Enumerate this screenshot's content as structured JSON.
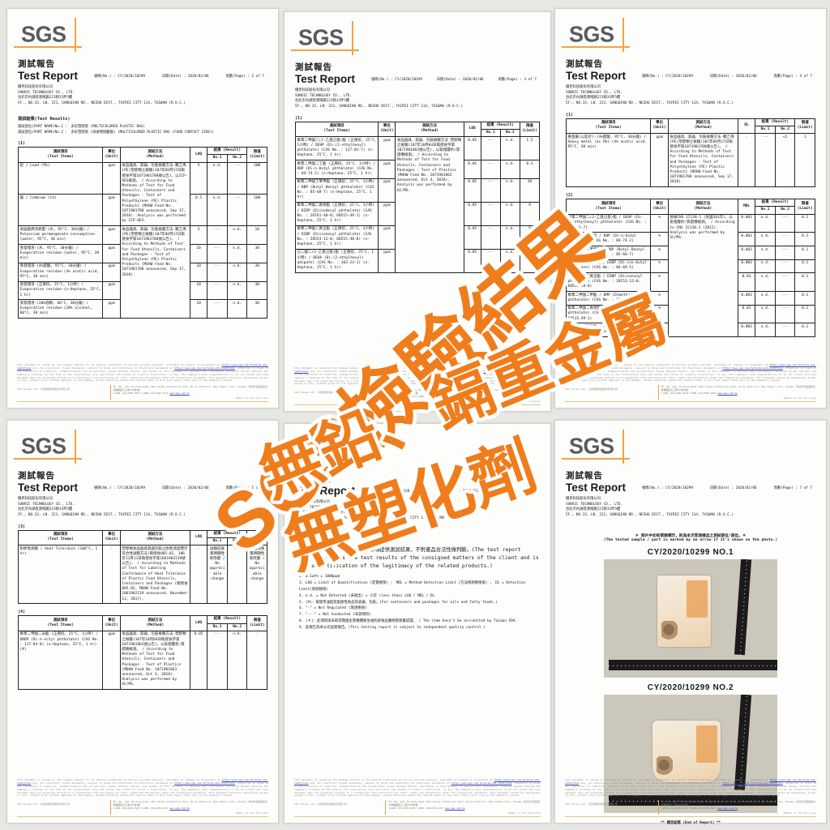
{
  "watermark": {
    "line1": "SGS檢驗結果",
    "line2": "無鉛、鎘重金屬",
    "line3": "無塑化劑",
    "color": "#ef7d1c",
    "outline": "#ffffff"
  },
  "common": {
    "logo_text": "SGS",
    "report_title_zh": "測試報告",
    "report_title_en": "Test Report",
    "no_label": "號碼(No.) :",
    "report_no": "CY/2020/10299",
    "date_label": "日期(Date) :",
    "date": "2020/02/06",
    "page_label": "頁數(Page) :",
    "company_zh": "穩見科技股份有限公司",
    "company_en": "SUNVIC TECHNOLOGY CO., LTD.",
    "address_zh": "台北市內湖區港墘路221巷33弄5樓",
    "address_en": "5F., NO.33, LN. 221, GANGQIAN RD., NEIHU DIST., TAIPEI CITY 114, TAIWAN (R.O.C.)",
    "columns": {
      "item_zh": "測試項目",
      "item_en": "(Test Items)",
      "unit_zh": "單位",
      "unit_en": "(Unit)",
      "method_zh": "測試方法",
      "method_en": "(Method)",
      "result_zh": "結果",
      "result_en": "(Result)",
      "no1": "No.1",
      "no2": "No.2",
      "limit_zh": "限值",
      "limit_en": "(Limit)"
    }
  },
  "pages": [
    {
      "page_no": "2 of 7",
      "results_title": "測試結果(Test Results)",
      "parts": [
        "測試部位(PART NAME)No.1 ： 多彩塑膠袋 (MULTICOLORED PLASTIC BAG)",
        "測試部位(PART NAME)No.2 ： 多彩塑膠袋 (與食物接觸面) (MULTICOLORED PLASTIC BAG (FOOD CONTACT SIDE))"
      ],
      "tables": [
        {
          "label": "(1)",
          "mdl_header": "LOQ",
          "groups": [
            {
              "method": "食品器具、容器、包裝檢驗方法-聚乙烯(PE)塑膠類之檢驗(107年09月17日衛授食字第1071901788號公告)，以ICP-OES檢測。 / According to Methods of Test for Food Utensils, Containers and Packages - Test of Polyethylene (PE) Plastic Products (MOHW Food No. 1071901788 announced, Sep 17, 2018). Analysis was performed by ICP-OES.",
              "rows": [
                {
                  "item": "鉛 / Lead (Pb)",
                  "unit": "ppm",
                  "mdl": "5",
                  "r1": "n.d.",
                  "r2": "---",
                  "limit": "100"
                },
                {
                  "item": "鎘 / Cadmium (Cd)",
                  "unit": "ppm",
                  "mdl": "0.5",
                  "r1": "n.d.",
                  "r2": "---",
                  "limit": "100"
                }
              ]
            },
            {
              "method": "食品器具、容器、包裝檢驗方法-聚乙烯(PE)塑膠類之檢驗(107年09月17日衛授食字第1071901788號公告)。 / According to Methods of Test for Food Utensils, Containers and Packages - Test of Polyethylene (PE) Plastic Products (MOHW Food No. 1071901788 announced, Sep 17, 2018).",
              "rows": [
                {
                  "item": "高錳酸鉀消耗量-(水, 95°C, 30分鐘) / Potassium permanganate consumption-(water, 95°C, 30 min)",
                  "unit": "ppm",
                  "mdl": "3",
                  "r1": "---",
                  "r2": "n.d.",
                  "limit": "10"
                },
                {
                  "item": "蒸發殘渣-(水, 95°C, 30分鐘) / Evaporation residue-(water, 95°C, 30 min)",
                  "unit": "ppm",
                  "mdl": "10",
                  "r1": "---",
                  "r2": "n.d.",
                  "limit": "30"
                },
                {
                  "item": "蒸發殘渣-(4%醋酸, 95°C, 30分鐘) / Evaporation residue-(4% acetic acid, 95°C, 30 min)",
                  "unit": "ppm",
                  "mdl": "10",
                  "r1": "---",
                  "r2": "n.d.",
                  "limit": "30"
                },
                {
                  "item": "蒸發殘渣-(正庚烷, 25°C, 1小時) / Evaporation residue-(n-Heptane, 25°C, 1 hr)",
                  "unit": "ppm",
                  "mdl": "10",
                  "r1": "---",
                  "r2": "n.d.",
                  "limit": "30"
                },
                {
                  "item": "蒸發殘渣-(20%酒精, 60°C, 30分鐘) / Evaporation residue-(20% alcohol, 60°C, 30 min)",
                  "unit": "ppm",
                  "mdl": "10",
                  "r1": "---",
                  "r2": "n.d.",
                  "limit": "30"
                }
              ]
            }
          ]
        }
      ]
    },
    {
      "page_no": "3 of 7",
      "tables": [
        {
          "label": "(1)",
          "mdl_header": "LOQ",
          "groups": [
            {
              "method": "食品器具、容器、包裝檢驗方法-塑膠類之檢驗(107年10月04日衛授食字第1071901863號公告)，以氣相層析/質譜儀檢測。 / According to Methods of Test for Food Utensils, Containers and Packages - Test of Plastics (MOHW Food No. 1071901863 announced, Oct 4, 2018). Analysis was performed by GC/MS.",
              "rows": [
                {
                  "item": "鄰苯二甲酸二(2-乙基己基)酯 (正庚烷, 25°C, 1小時) / DEHP (Di-(2-ethylhexyl) phthalate) (CAS No. : 117-81-7) (n-Heptane, 25°C, 1 hr)",
                  "unit": "ppm",
                  "mdl": "0.05",
                  "r1": "---",
                  "r2": "n.d.",
                  "limit": "1.5"
                },
                {
                  "item": "鄰苯二甲酸二丁酯 (正庚烷, 25°C, 1小時) / DBP (Di-n-butyl phthalate) (CAS No. : 84-74-2) (n-Heptane, 25°C, 1 hr)",
                  "unit": "ppm",
                  "mdl": "0.05",
                  "r1": "---",
                  "r2": "n.d.",
                  "limit": "0.3"
                },
                {
                  "item": "鄰苯二甲酸丁苯甲酯 (正庚烷, 25°C, 1小時) / BBP (Butyl Benzyl phthalate) (CAS No. : 85-68-7) (n-Heptane, 25°C, 1 hr)",
                  "unit": "ppm",
                  "mdl": "0.05",
                  "r1": "---",
                  "r2": "n.d.",
                  "limit": "30"
                },
                {
                  "item": "鄰苯二甲酸二異癸酯 (正庚烷, 25°C, 1小時) / DIDP (Diisodecyl phthalate) (CAS No. : 26761-40-0; 68515-49-1) (n-Heptane, 25°C, 1 hr)",
                  "unit": "ppm",
                  "mdl": "0.05",
                  "r1": "---",
                  "r2": "n.d.",
                  "limit": "9"
                },
                {
                  "item": "鄰苯二甲酸二異壬酯 (正庚烷, 25°C, 1小時) / DINP (Diisononyl phthalate) (CAS No. : 28553-12-0; 68515-48-0) (n-Heptane, 25°C, 1 hr)",
                  "unit": "ppm",
                  "mdl": "0.05",
                  "r1": "---",
                  "r2": "n.d.",
                  "limit": "9"
                },
                {
                  "item": "己二酸二(2-乙基己基)酯 (正庚烷, 25°C, 1小時) / DEHA (Di-(2-ethylhexyl) adipate) (CAS No. : 103-23-1) (n-Heptane, 25°C, 1 hr)",
                  "unit": "ppm",
                  "mdl": "0.05",
                  "r1": "---",
                  "r2": "n.d.",
                  "limit": "18"
                }
              ]
            }
          ]
        }
      ]
    },
    {
      "page_no": "4 of 7",
      "tables": [
        {
          "label": "(1)",
          "mdl_header": "DL",
          "groups": [
            {
              "method": "食品器具、容器、包裝檢驗方法-聚乙烯(PE)塑膠類之檢驗(107年09月17日衛授食字第1071901788號公告)。 / According to Methods of Test for Food Utensils, Containers and Packages - Test of Polyethylene (PE) Plastic Products (MOHW Food No. 1071901788 announced, Sep 17, 2018).",
              "rows": [
                {
                  "item": "重金屬(以鉛計)-(4%醋酸, 95°C, 30分鐘) / Heavy metal (as Pb)-(4% acetic acid, 95°C, 30 min)",
                  "unit": "ppm",
                  "mdl": "-",
                  "r1": "---",
                  "r2": "<1",
                  "limit": "1"
                }
              ]
            }
          ]
        },
        {
          "label": "(2)",
          "mdl_header": "MDL",
          "groups": [
            {
              "method": "依據CNS 15138-1 (民國101年)，以氣相層析/質譜儀檢測。 / According to CNS 15138-1 (2012). Analysis was performed by GC/MS.",
              "rows": [
                {
                  "item": "鄰苯二甲酸二(2-乙基己基)酯 / DEHP (Di-(2-ethylhexyl) phthalate) (CAS No. : 117-81-7)",
                  "unit": "%",
                  "mdl": "0.003",
                  "r1": "n.d.",
                  "r2": "---",
                  "limit": "0.1"
                },
                {
                  "item": "鄰苯二甲酸二丁酯 / DBP (Di-n-butyl phthalate) (CAS No. : 84-74-2)",
                  "unit": "%",
                  "mdl": "0.003",
                  "r1": "n.d.",
                  "r2": "---",
                  "limit": "0.1"
                },
                {
                  "item": "鄰苯二甲酸丁苯甲酯 / BBP (Butyl Benzyl phthalate) (CAS No. : 85-68-7)",
                  "unit": "%",
                  "mdl": "0.003",
                  "r1": "n.d.",
                  "r2": "---",
                  "limit": "0.1"
                },
                {
                  "item": "鄰苯二甲酸二異丁酯 / DIBP (Di-iso-butyl phthalate) (CAS No. : 84-69-5)",
                  "unit": "%",
                  "mdl": "0.003",
                  "r1": "n.d.",
                  "r2": "---",
                  "limit": "0.1"
                },
                {
                  "item": "鄰苯二甲酸二異壬酯 / DINP (Diisononyl phthalate) (CAS No. : 28553-12-0; 68515-48-0)",
                  "unit": "%",
                  "mdl": "0.01",
                  "r1": "n.d.",
                  "r2": "---",
                  "limit": "0.1"
                },
                {
                  "item": "鄰苯二甲酸二甲酯 / DMP (Dimethyl phthalate) (CAS No. : 131-11-3)",
                  "unit": "%",
                  "mdl": "0.003",
                  "r1": "n.d.",
                  "r2": "---",
                  "limit": "0.1"
                },
                {
                  "item": "鄰苯二甲酸二異癸酯 / DIDP (Diisodecyl phthalate) (CAS No. : 26761-40-0; 68515-49-1)",
                  "unit": "%",
                  "mdl": "0.01",
                  "r1": "n.d.",
                  "r2": "---",
                  "limit": "0.1"
                },
                {
                  "item": "鄰苯二甲酸二乙酯 / DEP (Diethyl phthalate) (CAS No. : 84-66-2)",
                  "unit": "%",
                  "mdl": "0.003",
                  "r1": "n.d.",
                  "r2": "---",
                  "limit": "0.1"
                }
              ]
            }
          ]
        }
      ]
    },
    {
      "page_no": "5 of 7",
      "tables": [
        {
          "label": "(3)",
          "mdl_header": "LOQ",
          "groups": [
            {
              "method": "塑膠類食品器具容器包裝之耐熱溫度標示符合性試驗方法(衛授食005.02, 106年11月13日衛授食字第1061902219號公告)。 / According to Methods of Test for Labeling Conformance of Heat Tolerance of Plastic Food Utensils, Containers and Packages (衛授食005.02, MOHW Food No. 1061902219 announced, November 13, 2017).",
              "rows": [
                {
                  "item": "耐熱性測驗 / Heat Tolerance (100°C, 1 hr)",
                  "unit": "-",
                  "mdl": "-",
                  "r1": "試驗前後無明顯性狀改變 / No appreciable change",
                  "r2": "---",
                  "limit": "試驗前後無明顯性狀改變 / No appreciable change"
                }
              ]
            }
          ]
        },
        {
          "label": "(4)",
          "mdl_header": "LOQ",
          "groups": [
            {
              "method": "食品器具、容器、包裝檢驗方法-塑膠類之檢驗(107年10月04日衛授食字第1071901863號公告)，以氣相層析/質譜儀檢測。 / According to Methods of Test for Food Utensils, Containers and Packages - Test of Plastics (MOHW Food No. 1071901863 announced, Oct 4, 2018). Analysis was performed by GC/MS.",
              "rows": [
                {
                  "item": "鄰苯二甲酸二辛酯 (正庚烷, 25°C, 1小時) / DNOP (Di-n-octyl phthalate) (CAS No. : 117-84-0) (n-Heptane, 25°C, 1 hr) (#)",
                  "unit": "ppm",
                  "mdl": "0.05",
                  "r1": "---",
                  "r2": "n.d.",
                  "limit": "-"
                }
              ]
            }
          ]
        }
      ]
    },
    {
      "page_no": "6 of 7",
      "notes_title": "備註(Note)：",
      "note_first": "1. 測試報告僅就委託者之委託事項提供測試結果，不對產品合法性做判斷。(The test report merely reflects the test results of the consigned matters of the client and is not a certification of the legitimacy of the related products.)",
      "notes": [
        "2. 0.1wt% = 1000ppm",
        "3. LOQ = Limit of Quantification (定量極限) ； MDL = Method Detection Limit (方法偵測極限值) ； DL = Detection Limit(偵測極限)",
        "4. n.d. = Not Detected (未檢出) = 小於 (less than) LOQ / MDL / DL",
        "5. (#)：祇使用油脂及脂肪性食品為容器、包裝。(For containers and packages for oils and fatty foods.)",
        "6. \"-\" = Not Regulated (無規格值)",
        "7. \"---\" = Not Conducted (未測項目)",
        "8. (＊)：此項目尚未取得我國主管機關衛生福利部食品藥物管理署認證。 / The item hasn't be accredited by Taiwan FDA.",
        "9. 此報告為本公司品管報告。(This testing report is subject to independent quality control.)"
      ]
    },
    {
      "page_no": "7 of 7",
      "photo_caption_zh": "＊ 照片中如有箭頭標示，則為本次受測樣品之測試部位/部位。＊",
      "photo_caption_en": "(The tested sample / part is marked by an arrow if it's shown on the photo.)",
      "photos": [
        {
          "label": "CY/2020/10299  NO.1"
        },
        {
          "label": "CY/2020/10299  NO.2"
        }
      ],
      "end_text": "** 報告結尾 (End of Report) **"
    }
  ],
  "footer": {
    "d1": "This document is issued by the Company subject to its General Conditions of Service printed overleaf, available on request or accessible at ",
    "link1": "https://www.sgs.com.tw/terms-and-conditions",
    "d2": " and, for electronic format documents, subject to Terms and Conditions for Electronic Documents at ",
    "link2": "https://www.sgs.com.tw/terms-and-conditions",
    "d3": ". Attention is drawn to the limitation of liability, indemnification and jurisdiction issues defined therein. Any holder of this document is advised that information contained hereon reflects the Company's findings at the time of its intervention only and within the limits of client's instruction, if any. The Company's sole responsibility is to its Client and this document does not exonerate parties to a transaction from exercising all their rights and obligations under the transaction documents. This document cannot be reproduced, except in full, without prior written approval of the Company. Unless otherwise stated the results shown in this test report refer only to the sample(s) tested.",
    "company": "SGS Taiwan Ltd. 台灣檢驗科技股份有限公司",
    "address": "4F, No. 125, Wu Kung Road, New Taipei Industrial Park, Wu Ku District, New Taipei City, Taiwan /新北市五股區新北產業園區五工路125號4樓",
    "phone": "t+886 (02)2299-3939   f+886 (02)2299-3237",
    "website": "www.sgs.com.tw",
    "member": "Member of the SGS Group"
  }
}
